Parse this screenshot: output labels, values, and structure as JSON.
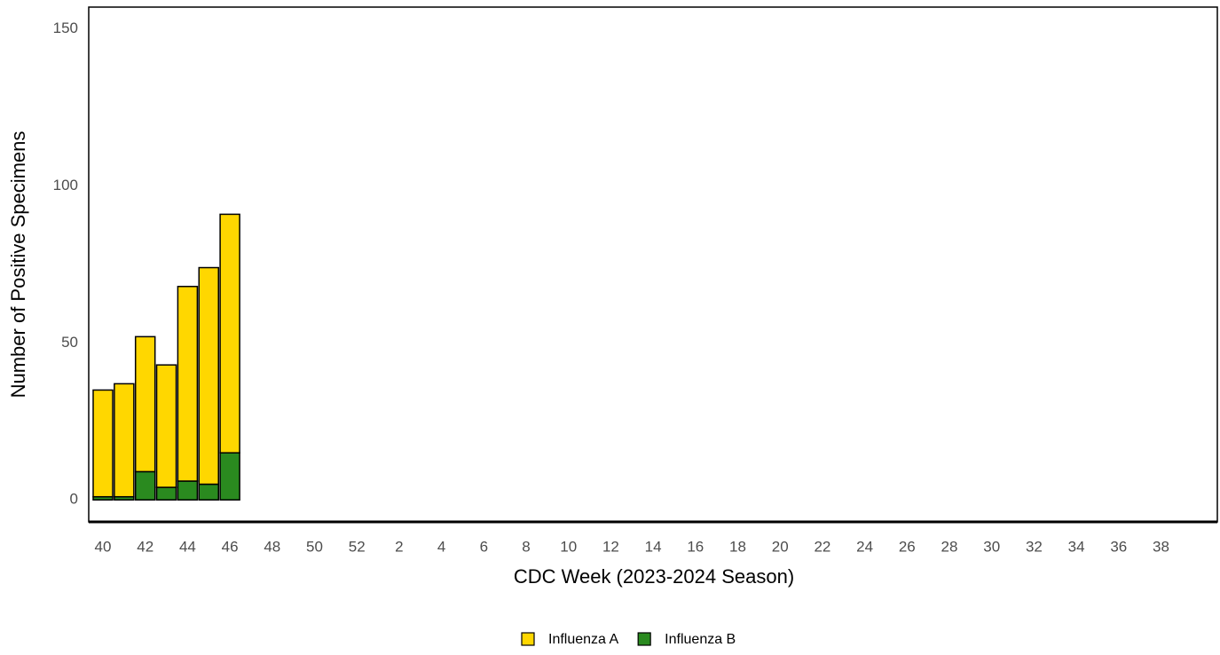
{
  "chart_data": {
    "type": "stacked-bar",
    "x_label": "CDC Week (2023-2024 Season)",
    "y_label": "Number of Positive Specimens",
    "categories": [
      "40",
      null,
      "42",
      null,
      "44",
      null,
      "46",
      null,
      "48",
      null,
      "50",
      null,
      "52",
      null,
      "2",
      null,
      "4",
      null,
      "6",
      null,
      "8",
      null,
      "10",
      null,
      "12",
      null,
      "14",
      null,
      "16",
      null,
      "18",
      null,
      "20",
      null,
      "22",
      null,
      "24",
      null,
      "26",
      null,
      "28",
      null,
      "30",
      null,
      "32",
      null,
      "34",
      null,
      "36",
      null,
      "38",
      null
    ],
    "series": [
      {
        "name": "Influenza A",
        "color": "#ffd700",
        "values": [
          34,
          36,
          43,
          39,
          62,
          69,
          76,
          null,
          null,
          null,
          null,
          null,
          null,
          null,
          null,
          null,
          null,
          null,
          null,
          null,
          null,
          null,
          null,
          null,
          null,
          null,
          null,
          null,
          null,
          null,
          null,
          null,
          null,
          null,
          null,
          null,
          null,
          null,
          null,
          null,
          null,
          null,
          null,
          null,
          null,
          null,
          null,
          null,
          null,
          null,
          null,
          null
        ]
      },
      {
        "name": "Influenza B",
        "color": "#2a8a1f",
        "values": [
          1,
          1,
          9,
          4,
          6,
          5,
          15,
          null,
          null,
          null,
          null,
          null,
          null,
          null,
          null,
          null,
          null,
          null,
          null,
          null,
          null,
          null,
          null,
          null,
          null,
          null,
          null,
          null,
          null,
          null,
          null,
          null,
          null,
          null,
          null,
          null,
          null,
          null,
          null,
          null,
          null,
          null,
          null,
          null,
          null,
          null,
          null,
          null,
          null,
          null,
          null,
          null
        ]
      }
    ],
    "ylim": [
      -7,
      157
    ],
    "yticks": [
      0,
      50,
      100,
      150
    ],
    "legend": "bottom"
  }
}
